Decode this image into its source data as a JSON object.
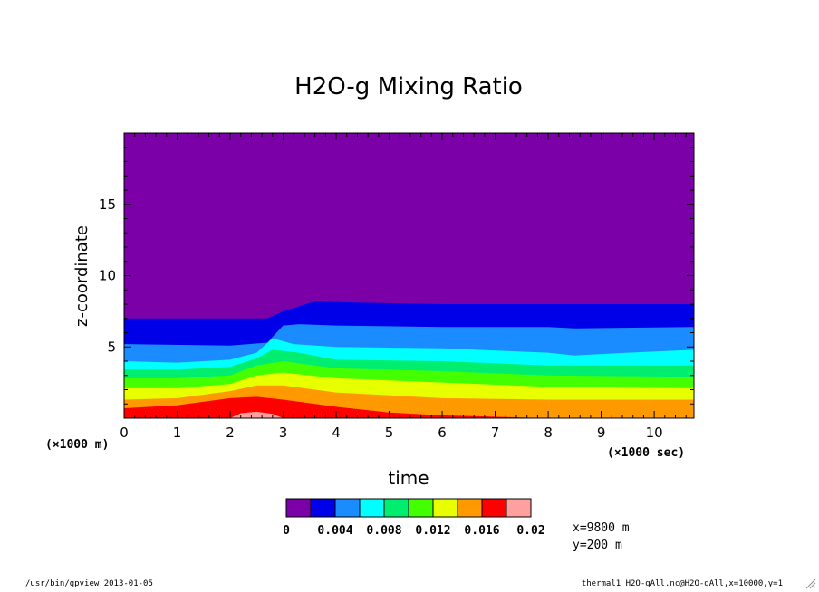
{
  "footer": {
    "left": "/usr/bin/gpview  2013-01-05",
    "right": "thermal1_H2O-gAll.nc@H2O-gAll,x=10000,y=1"
  },
  "chart_data": {
    "type": "heatmap",
    "title": "H2O-g Mixing Ratio",
    "xlabel": "time",
    "ylabel": "z-coordinate",
    "x_unit": "(×1000 sec)",
    "y_unit": "(×1000 m)",
    "xlim": [
      0,
      10.75
    ],
    "ylim": [
      0,
      20
    ],
    "x_ticks": [
      0,
      1,
      2,
      3,
      4,
      5,
      6,
      7,
      8,
      9,
      10
    ],
    "y_ticks": [
      5,
      10,
      15
    ],
    "grid": false,
    "levels": [
      0,
      0.002,
      0.004,
      0.006,
      0.008,
      0.01,
      0.012,
      0.014,
      0.016,
      0.018,
      0.02
    ],
    "colorbar_labels": [
      "0",
      "0.004",
      "0.008",
      "0.012",
      "0.016",
      "0.02"
    ],
    "colors": [
      "#7b00a8",
      "#0000e8",
      "#1a8cff",
      "#00ffff",
      "#00ee70",
      "#44ff00",
      "#e8ff00",
      "#ff9900",
      "#ff0000",
      "#ffa0a0"
    ],
    "contours": [
      {
        "level": 0.002,
        "x": [
          0,
          2,
          2.7,
          3.0,
          3.6,
          4.5,
          6,
          8,
          10.75
        ],
        "z": [
          7.0,
          7.0,
          7.0,
          7.5,
          8.2,
          8.1,
          8.0,
          8.0,
          8.0
        ]
      },
      {
        "level": 0.004,
        "x": [
          0,
          2,
          2.7,
          3.0,
          3.3,
          4,
          6,
          8,
          8.5,
          10.75
        ],
        "z": [
          5.2,
          5.1,
          5.3,
          6.5,
          6.6,
          6.5,
          6.4,
          6.4,
          6.3,
          6.4
        ]
      },
      {
        "level": 0.006,
        "x": [
          0,
          1,
          2,
          2.5,
          2.8,
          3.2,
          4,
          6,
          8,
          8.5,
          9.5,
          10.75
        ],
        "z": [
          4.0,
          3.9,
          4.1,
          4.6,
          5.6,
          5.2,
          5.0,
          4.9,
          4.6,
          4.4,
          4.6,
          4.8
        ]
      },
      {
        "level": 0.008,
        "x": [
          0,
          1,
          2,
          2.5,
          2.8,
          3.3,
          4,
          6,
          8,
          10.75
        ],
        "z": [
          3.4,
          3.4,
          3.6,
          4.2,
          4.8,
          4.6,
          4.1,
          4.0,
          3.7,
          3.7
        ]
      },
      {
        "level": 0.01,
        "x": [
          0,
          1,
          2,
          2.5,
          3,
          4,
          6,
          8,
          10.75
        ],
        "z": [
          2.8,
          2.8,
          3.0,
          3.7,
          4.0,
          3.5,
          3.3,
          3.0,
          2.9
        ]
      },
      {
        "level": 0.012,
        "x": [
          0,
          1,
          2,
          2.5,
          3,
          4,
          6,
          8,
          10.75
        ],
        "z": [
          2.1,
          2.1,
          2.4,
          3.0,
          3.2,
          2.8,
          2.5,
          2.2,
          2.1
        ]
      },
      {
        "level": 0.014,
        "x": [
          0,
          1,
          2,
          2.5,
          3,
          4,
          6,
          8,
          10.75
        ],
        "z": [
          1.3,
          1.4,
          1.9,
          2.3,
          2.3,
          1.8,
          1.4,
          1.3,
          1.3
        ]
      },
      {
        "level": 0.016,
        "x": [
          0,
          1,
          2,
          2.5,
          3,
          4,
          5,
          6,
          8,
          10.75
        ],
        "z": [
          0.7,
          0.9,
          1.4,
          1.5,
          1.3,
          0.8,
          0.4,
          0.2,
          0.0,
          0.0
        ]
      },
      {
        "level": 0.018,
        "x": [
          0,
          2.0,
          2.2,
          2.5,
          2.8,
          3.0
        ],
        "z": [
          0,
          0,
          0.35,
          0.45,
          0.3,
          0
        ]
      }
    ],
    "annotations": [
      "x=9800 m",
      "y=200 m"
    ]
  }
}
